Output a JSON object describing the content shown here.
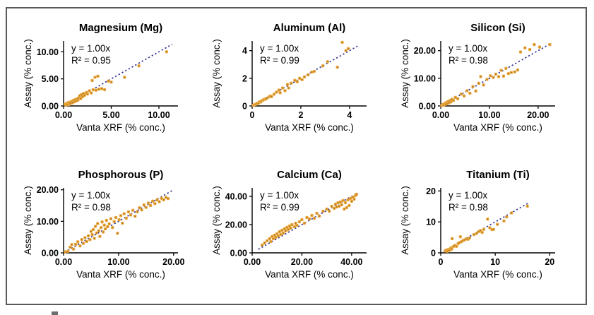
{
  "figure": {
    "border_color": "#58595B",
    "background": "#FFFFFF"
  },
  "colors": {
    "point_fill": "#E9A63C",
    "point_core": "#9A6410",
    "trendline": "#2E3192",
    "axis": "#000000",
    "text": "#000000"
  },
  "axis_titles": {
    "x": "Vanta XRF (% conc.)",
    "y": "Assay (% conc.)"
  },
  "chart_data": [
    {
      "id": "magnesium",
      "type": "scatter",
      "title": "Magnesium (Mg)",
      "equation": "y = 1.00x",
      "r2": "R² = 0.95",
      "xlabel": "Vanta XRF (% conc.)",
      "ylabel": "Assay (% conc.)",
      "xlim": [
        0,
        12
      ],
      "ylim": [
        0,
        12
      ],
      "xticks": [
        {
          "v": 0,
          "label": "0.00"
        },
        {
          "v": 5,
          "label": "5.00"
        },
        {
          "v": 10,
          "label": "10.00"
        }
      ],
      "yticks": [
        {
          "v": 0,
          "label": "0.00"
        },
        {
          "v": 5,
          "label": "5.00"
        },
        {
          "v": 10,
          "label": "10.00"
        }
      ],
      "trend": {
        "slope": 1.0,
        "x1": 0.2,
        "x2": 11.4
      },
      "points": [
        [
          0.15,
          0.3
        ],
        [
          0.25,
          0.15
        ],
        [
          0.3,
          0.5
        ],
        [
          0.4,
          0.35
        ],
        [
          0.5,
          0.6
        ],
        [
          0.55,
          0.25
        ],
        [
          0.65,
          0.7
        ],
        [
          0.7,
          0.45
        ],
        [
          0.8,
          0.8
        ],
        [
          0.9,
          0.55
        ],
        [
          1.0,
          1.0
        ],
        [
          1.1,
          0.75
        ],
        [
          1.2,
          1.15
        ],
        [
          1.3,
          0.9
        ],
        [
          1.4,
          1.3
        ],
        [
          1.5,
          1.05
        ],
        [
          1.6,
          1.5
        ],
        [
          1.7,
          1.9
        ],
        [
          1.8,
          1.35
        ],
        [
          1.9,
          2.1
        ],
        [
          2.0,
          1.7
        ],
        [
          2.1,
          2.3
        ],
        [
          2.2,
          1.95
        ],
        [
          2.4,
          2.5
        ],
        [
          2.5,
          2.2
        ],
        [
          2.7,
          2.8
        ],
        [
          2.9,
          2.4
        ],
        [
          3.0,
          4.7
        ],
        [
          3.1,
          3.0
        ],
        [
          3.3,
          5.3
        ],
        [
          3.4,
          2.9
        ],
        [
          3.6,
          5.5
        ],
        [
          3.7,
          3.1
        ],
        [
          4.0,
          3.2
        ],
        [
          4.3,
          3.0
        ],
        [
          4.7,
          4.6
        ],
        [
          5.0,
          4.4
        ],
        [
          6.4,
          5.3
        ],
        [
          7.9,
          7.4
        ],
        [
          10.8,
          10.0
        ]
      ]
    },
    {
      "id": "aluminum",
      "type": "scatter",
      "title": "Aluminum (Al)",
      "equation": "y = 1.00x",
      "r2": "R² = 0.99",
      "xlabel": "Vanta XRF (% conc.)",
      "ylabel": "Assay (% conc.)",
      "xlim": [
        0,
        4.7
      ],
      "ylim": [
        0,
        4.7
      ],
      "xticks": [
        {
          "v": 0,
          "label": "0"
        },
        {
          "v": 2,
          "label": "2"
        },
        {
          "v": 4,
          "label": "4"
        }
      ],
      "yticks": [
        {
          "v": 0,
          "label": "0"
        },
        {
          "v": 2,
          "label": "2"
        },
        {
          "v": 4,
          "label": "4"
        }
      ],
      "trend": {
        "slope": 1.0,
        "x1": 0.05,
        "x2": 4.35
      },
      "points": [
        [
          0.05,
          0.05
        ],
        [
          0.1,
          0.1
        ],
        [
          0.15,
          0.12
        ],
        [
          0.2,
          0.2
        ],
        [
          0.25,
          0.18
        ],
        [
          0.3,
          0.3
        ],
        [
          0.35,
          0.28
        ],
        [
          0.4,
          0.38
        ],
        [
          0.45,
          0.42
        ],
        [
          0.5,
          0.48
        ],
        [
          0.55,
          0.5
        ],
        [
          0.6,
          0.55
        ],
        [
          0.7,
          0.65
        ],
        [
          0.75,
          0.72
        ],
        [
          0.8,
          0.68
        ],
        [
          0.9,
          0.85
        ],
        [
          1.0,
          1.0
        ],
        [
          1.1,
          1.15
        ],
        [
          1.15,
          0.95
        ],
        [
          1.25,
          1.3
        ],
        [
          1.35,
          1.1
        ],
        [
          1.45,
          1.55
        ],
        [
          1.5,
          1.3
        ],
        [
          1.6,
          1.65
        ],
        [
          1.75,
          1.85
        ],
        [
          1.85,
          1.75
        ],
        [
          1.95,
          2.0
        ],
        [
          2.05,
          1.9
        ],
        [
          2.15,
          2.1
        ],
        [
          2.3,
          2.25
        ],
        [
          2.45,
          2.45
        ],
        [
          2.55,
          2.5
        ],
        [
          2.9,
          2.9
        ],
        [
          3.1,
          3.2
        ],
        [
          3.5,
          2.8
        ],
        [
          3.7,
          4.6
        ],
        [
          3.85,
          4.0
        ],
        [
          3.95,
          4.15
        ]
      ]
    },
    {
      "id": "silicon",
      "type": "scatter",
      "title": "Silicon (Si)",
      "equation": "y = 1.00x",
      "r2": "R² = 0.98",
      "xlabel": "Vanta XRF (% conc.)",
      "ylabel": "Assay (% conc.)",
      "xlim": [
        0,
        23.5
      ],
      "ylim": [
        0,
        23.5
      ],
      "xticks": [
        {
          "v": 0,
          "label": "0.00"
        },
        {
          "v": 10,
          "label": "10.00"
        },
        {
          "v": 20,
          "label": "20.00"
        }
      ],
      "yticks": [
        {
          "v": 0,
          "label": "0.00"
        },
        {
          "v": 10,
          "label": "10.00"
        },
        {
          "v": 20,
          "label": "20.00"
        }
      ],
      "trend": {
        "slope": 1.0,
        "x1": 0.3,
        "x2": 22.8
      },
      "points": [
        [
          0.2,
          0.15
        ],
        [
          0.4,
          0.5
        ],
        [
          0.6,
          0.3
        ],
        [
          0.8,
          0.9
        ],
        [
          1.0,
          0.6
        ],
        [
          1.1,
          1.2
        ],
        [
          1.3,
          0.8
        ],
        [
          1.5,
          1.6
        ],
        [
          1.7,
          1.1
        ],
        [
          1.9,
          2.0
        ],
        [
          2.1,
          1.5
        ],
        [
          2.3,
          2.4
        ],
        [
          2.6,
          2.0
        ],
        [
          3.0,
          3.1
        ],
        [
          3.5,
          2.6
        ],
        [
          4.2,
          4.3
        ],
        [
          4.8,
          3.6
        ],
        [
          5.4,
          5.5
        ],
        [
          6.0,
          4.6
        ],
        [
          6.6,
          7.0
        ],
        [
          7.2,
          5.4
        ],
        [
          7.8,
          8.2
        ],
        [
          8.2,
          10.6
        ],
        [
          8.8,
          7.6
        ],
        [
          9.5,
          9.6
        ],
        [
          10.2,
          10.9
        ],
        [
          10.8,
          10.3
        ],
        [
          11.3,
          11.5
        ],
        [
          11.9,
          10.6
        ],
        [
          12.4,
          12.9
        ],
        [
          12.9,
          10.8
        ],
        [
          13.4,
          13.6
        ],
        [
          13.9,
          11.7
        ],
        [
          14.5,
          12.1
        ],
        [
          15.2,
          12.3
        ],
        [
          15.8,
          13.0
        ],
        [
          16.4,
          19.5
        ],
        [
          17.3,
          21.0
        ],
        [
          18.3,
          20.4
        ],
        [
          19.2,
          22.2
        ],
        [
          20.3,
          21.3
        ],
        [
          22.4,
          22.2
        ]
      ]
    },
    {
      "id": "phosphorous",
      "type": "scatter",
      "title": "Phosphorous (P)",
      "equation": "y = 1.00x",
      "r2": "R² = 0.98",
      "xlabel": "Vanta XRF (% conc.)",
      "ylabel": "Assay (% conc.)",
      "xlim": [
        0,
        20.8
      ],
      "ylim": [
        0,
        20.6
      ],
      "xticks": [
        {
          "v": 0,
          "label": "0.00"
        },
        {
          "v": 10,
          "label": "10.00"
        },
        {
          "v": 20,
          "label": "20.00"
        }
      ],
      "yticks": [
        {
          "v": 0,
          "label": "0.00"
        },
        {
          "v": 10,
          "label": "10.00"
        },
        {
          "v": 20,
          "label": "20.00"
        }
      ],
      "trend": {
        "slope": 1.0,
        "x1": 0.2,
        "x2": 19.8
      },
      "points": [
        [
          0.3,
          0.3
        ],
        [
          0.8,
          0.5
        ],
        [
          1.2,
          1.8
        ],
        [
          1.5,
          2.6
        ],
        [
          1.8,
          1.2
        ],
        [
          2.2,
          2.7
        ],
        [
          2.6,
          3.5
        ],
        [
          3.0,
          2.2
        ],
        [
          3.3,
          4.2
        ],
        [
          3.6,
          3.0
        ],
        [
          3.9,
          4.8
        ],
        [
          4.2,
          3.6
        ],
        [
          4.5,
          5.4
        ],
        [
          4.8,
          4.2
        ],
        [
          5.0,
          6.8
        ],
        [
          5.2,
          5.8
        ],
        [
          5.4,
          7.4
        ],
        [
          5.6,
          4.6
        ],
        [
          5.8,
          8.4
        ],
        [
          6.0,
          6.3
        ],
        [
          6.2,
          9.3
        ],
        [
          6.4,
          7.0
        ],
        [
          6.6,
          5.2
        ],
        [
          6.8,
          8.0
        ],
        [
          7.0,
          9.8
        ],
        [
          7.2,
          6.6
        ],
        [
          7.4,
          8.8
        ],
        [
          7.6,
          7.6
        ],
        [
          7.8,
          10.3
        ],
        [
          8.0,
          8.3
        ],
        [
          8.3,
          9.2
        ],
        [
          8.6,
          10.8
        ],
        [
          8.9,
          8.0
        ],
        [
          9.2,
          9.9
        ],
        [
          9.5,
          11.2
        ],
        [
          9.8,
          6.2
        ],
        [
          10.1,
          10.5
        ],
        [
          10.4,
          11.8
        ],
        [
          10.7,
          9.4
        ],
        [
          11.0,
          12.4
        ],
        [
          11.4,
          11.0
        ],
        [
          11.8,
          13.0
        ],
        [
          12.2,
          12.0
        ],
        [
          12.6,
          13.5
        ],
        [
          13.0,
          11.6
        ],
        [
          13.4,
          13.0
        ],
        [
          13.8,
          14.3
        ],
        [
          14.2,
          13.6
        ],
        [
          14.6,
          15.2
        ],
        [
          15.0,
          14.4
        ],
        [
          15.4,
          15.8
        ],
        [
          15.8,
          15.0
        ],
        [
          16.2,
          16.4
        ],
        [
          16.6,
          15.6
        ],
        [
          17.0,
          16.8
        ],
        [
          17.4,
          16.2
        ],
        [
          17.8,
          17.3
        ],
        [
          18.2,
          16.8
        ],
        [
          18.6,
          17.6
        ],
        [
          19.0,
          17.2
        ]
      ]
    },
    {
      "id": "calcium",
      "type": "scatter",
      "title": "Calcium (Ca)",
      "equation": "y = 1.00x",
      "r2": "R² = 0.99",
      "xlabel": "Vanta XRF (% conc.)",
      "ylabel": "Assay (% conc.)",
      "xlim": [
        0,
        46
      ],
      "ylim": [
        0,
        46
      ],
      "xticks": [
        {
          "v": 0,
          "label": "0.00"
        },
        {
          "v": 20,
          "label": "20.00"
        },
        {
          "v": 40,
          "label": "40.00"
        }
      ],
      "yticks": [
        {
          "v": 0,
          "label": "0.00"
        },
        {
          "v": 20,
          "label": "20.00"
        },
        {
          "v": 40,
          "label": "40.00"
        }
      ],
      "trend": {
        "slope": 1.0,
        "x1": 2.5,
        "x2": 42.5
      },
      "points": [
        [
          4,
          5.5
        ],
        [
          5,
          7
        ],
        [
          6,
          8.5
        ],
        [
          7,
          10
        ],
        [
          7.5,
          8
        ],
        [
          8,
          11.5
        ],
        [
          8.5,
          10
        ],
        [
          9,
          12.5
        ],
        [
          9.5,
          11
        ],
        [
          10,
          13.5
        ],
        [
          10.5,
          12
        ],
        [
          11,
          15
        ],
        [
          11.5,
          13
        ],
        [
          12,
          16
        ],
        [
          12.5,
          14
        ],
        [
          13,
          17
        ],
        [
          13.5,
          15.5
        ],
        [
          14,
          18
        ],
        [
          14.5,
          16.5
        ],
        [
          15,
          19
        ],
        [
          15.5,
          17.5
        ],
        [
          16,
          20
        ],
        [
          17,
          18.5
        ],
        [
          17.5,
          21
        ],
        [
          18,
          19.5
        ],
        [
          19,
          22
        ],
        [
          20,
          23.5
        ],
        [
          21,
          21
        ],
        [
          22,
          25
        ],
        [
          23,
          24
        ],
        [
          24,
          26.5
        ],
        [
          25,
          24.5
        ],
        [
          26,
          28
        ],
        [
          27,
          26
        ],
        [
          28.5,
          29.5
        ],
        [
          30,
          31
        ],
        [
          31,
          29.5
        ],
        [
          32,
          33
        ],
        [
          33,
          31.5
        ],
        [
          33.5,
          34.5
        ],
        [
          34,
          32.5
        ],
        [
          34.5,
          35.5
        ],
        [
          35,
          33
        ],
        [
          35.5,
          36
        ],
        [
          36,
          34
        ],
        [
          36.5,
          37
        ],
        [
          37,
          31
        ],
        [
          37.5,
          35.5
        ],
        [
          38,
          32
        ],
        [
          38.5,
          37.5
        ],
        [
          39,
          33.5
        ],
        [
          39.5,
          38.5
        ],
        [
          40,
          36.5
        ],
        [
          40.5,
          39.5
        ],
        [
          41,
          38
        ],
        [
          41.5,
          40.5
        ],
        [
          42,
          41.5
        ]
      ]
    },
    {
      "id": "titanium",
      "type": "scatter",
      "title": "Titanium (Ti)",
      "equation": "y = 1.00x",
      "r2": "R² = 0.98",
      "xlabel": "Vanta XRF (% conc.)",
      "ylabel": "Assay (% conc.)",
      "xlim": [
        0,
        21
      ],
      "ylim": [
        0,
        21
      ],
      "xticks": [
        {
          "v": 0,
          "label": "0"
        },
        {
          "v": 10,
          "label": "10"
        },
        {
          "v": 20,
          "label": "20"
        }
      ],
      "yticks": [
        {
          "v": 0,
          "label": "0"
        },
        {
          "v": 10,
          "label": "10"
        },
        {
          "v": 20,
          "label": "20"
        }
      ],
      "trend": {
        "slope": 1.0,
        "x1": 0.5,
        "x2": 16.3
      },
      "points": [
        [
          0.8,
          0.6
        ],
        [
          1.0,
          0.9
        ],
        [
          1.2,
          0.5
        ],
        [
          1.4,
          1.1
        ],
        [
          1.6,
          0.8
        ],
        [
          1.8,
          1.5
        ],
        [
          2.0,
          1.2
        ],
        [
          2.1,
          4.6
        ],
        [
          2.3,
          2.0
        ],
        [
          2.6,
          2.4
        ],
        [
          2.9,
          2.1
        ],
        [
          3.2,
          3.0
        ],
        [
          3.4,
          3.3
        ],
        [
          3.6,
          5.2
        ],
        [
          3.8,
          3.6
        ],
        [
          4.1,
          4.0
        ],
        [
          4.4,
          4.2
        ],
        [
          4.7,
          4.5
        ],
        [
          5.0,
          4.4
        ],
        [
          5.3,
          4.8
        ],
        [
          6.1,
          5.9
        ],
        [
          6.6,
          6.3
        ],
        [
          7.0,
          6.9
        ],
        [
          7.3,
          7.2
        ],
        [
          7.6,
          6.6
        ],
        [
          7.9,
          7.6
        ],
        [
          8.6,
          10.9
        ],
        [
          9.0,
          8.1
        ],
        [
          9.4,
          7.5
        ],
        [
          9.7,
          7.6
        ],
        [
          10.4,
          9.2
        ],
        [
          11.6,
          10.3
        ],
        [
          12.1,
          11.6
        ],
        [
          13.0,
          12.9
        ],
        [
          15.9,
          15.1
        ]
      ]
    }
  ]
}
